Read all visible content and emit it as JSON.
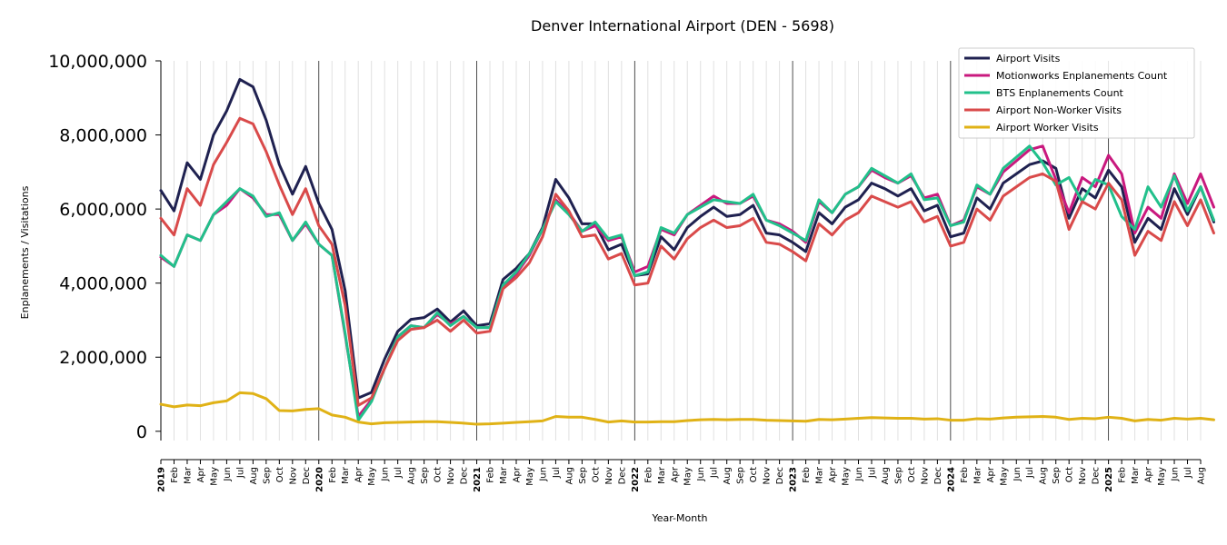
{
  "chart_data": {
    "type": "line",
    "title": "Denver International Airport (DEN - 5698)",
    "xlabel": "Year-Month",
    "ylabel": "Enplanements / Visitations",
    "ylim": [
      -250000,
      10000000
    ],
    "yticks": [
      0,
      2000000,
      4000000,
      6000000,
      8000000,
      10000000
    ],
    "ytick_labels": [
      "0",
      "2,000,000",
      "4,000,000",
      "6,000,000",
      "8,000,000",
      "10,000,000"
    ],
    "legend_position": "top-right",
    "grid": "vertical monthly lines, year boundary lines",
    "x_labels": [
      "2019",
      "Feb",
      "Mar",
      "Apr",
      "May",
      "Jun",
      "Jul",
      "Aug",
      "Sep",
      "Oct",
      "Nov",
      "Dec",
      "2020",
      "Feb",
      "Mar",
      "Apr",
      "May",
      "Jun",
      "Jul",
      "Aug",
      "Sep",
      "Oct",
      "Nov",
      "Dec",
      "2021",
      "Feb",
      "Mar",
      "Apr",
      "May",
      "Jun",
      "Jul",
      "Aug",
      "Sep",
      "Oct",
      "Nov",
      "Dec",
      "2022",
      "Feb",
      "Mar",
      "Apr",
      "May",
      "Jun",
      "Jul",
      "Aug",
      "Sep",
      "Oct",
      "Nov",
      "Dec",
      "2023",
      "Feb",
      "Mar",
      "Apr",
      "May",
      "Jun",
      "Jul",
      "Aug",
      "Sep",
      "Oct",
      "Nov",
      "Dec",
      "2024",
      "Feb",
      "Mar",
      "Apr",
      "May",
      "Jun",
      "Jul",
      "Aug",
      "Sep",
      "Oct",
      "Nov",
      "Dec",
      "2025",
      "Feb",
      "Mar",
      "Apr",
      "May",
      "Jun",
      "Jul",
      "Aug"
    ],
    "series": [
      {
        "name": "Airport Visits",
        "color": "#1f2150",
        "values": [
          6500000,
          5950000,
          7250000,
          6800000,
          8000000,
          8650000,
          9500000,
          9300000,
          8400000,
          7200000,
          6400000,
          7150000,
          6150000,
          5450000,
          3800000,
          900000,
          1050000,
          1950000,
          2700000,
          3020000,
          3070000,
          3300000,
          2950000,
          3250000,
          2850000,
          2900000,
          4100000,
          4400000,
          4800000,
          5500000,
          6800000,
          6300000,
          5600000,
          5600000,
          4900000,
          5050000,
          4200000,
          4250000,
          5250000,
          4900000,
          5500000,
          5800000,
          6050000,
          5800000,
          5850000,
          6100000,
          5350000,
          5300000,
          5100000,
          4850000,
          5900000,
          5600000,
          6050000,
          6250000,
          6700000,
          6550000,
          6350000,
          6550000,
          5950000,
          6100000,
          5250000,
          5350000,
          6300000,
          6000000,
          6700000,
          6950000,
          7200000,
          7300000,
          7100000,
          5750000,
          6550000,
          6300000,
          7050000,
          6600000,
          5100000,
          5750000,
          5450000,
          6550000,
          5850000,
          6600000,
          5650000
        ]
      },
      {
        "name": "Motionworks Enplanements Count",
        "color": "#c9197e",
        "values": [
          4700000,
          4450000,
          5300000,
          5150000,
          5850000,
          6100000,
          6550000,
          6300000,
          5850000,
          5850000,
          5150000,
          5600000,
          5050000,
          4750000,
          2600000,
          400000,
          850000,
          1700000,
          2550000,
          2850000,
          2800000,
          3150000,
          2900000,
          3100000,
          2800000,
          2800000,
          3900000,
          4250000,
          4750000,
          5450000,
          6250000,
          5900000,
          5400000,
          5550000,
          5150000,
          5250000,
          4300000,
          4450000,
          5450000,
          5300000,
          5850000,
          6100000,
          6350000,
          6150000,
          6150000,
          6350000,
          5700000,
          5600000,
          5400000,
          5100000,
          6200000,
          5900000,
          6400000,
          6600000,
          7050000,
          6850000,
          6700000,
          6900000,
          6300000,
          6400000,
          5550000,
          5700000,
          6600000,
          6400000,
          7000000,
          7300000,
          7600000,
          7700000,
          6800000,
          5900000,
          6850000,
          6600000,
          7450000,
          6950000,
          5350000,
          6050000,
          5750000,
          6950000,
          6150000,
          6950000,
          6050000
        ]
      },
      {
        "name": "BTS Enplanements Count",
        "color": "#22c08b",
        "values": [
          4750000,
          4450000,
          5300000,
          5150000,
          5850000,
          6200000,
          6550000,
          6350000,
          5800000,
          5900000,
          5150000,
          5650000,
          5050000,
          4750000,
          2650000,
          300000,
          800000,
          1700000,
          2550000,
          2850000,
          2800000,
          3200000,
          2850000,
          3100000,
          2800000,
          2800000,
          3950000,
          4300000,
          4800000,
          5450000,
          6200000,
          5850000,
          5400000,
          5650000,
          5200000,
          5300000,
          4200000,
          4300000,
          5500000,
          5350000,
          5850000,
          6050000,
          6250000,
          6200000,
          6150000,
          6400000,
          5700000,
          5550000,
          5350000,
          5150000,
          6250000,
          5900000,
          6400000,
          6600000,
          7100000,
          6900000,
          6700000,
          6950000,
          6250000,
          6300000,
          5550000,
          5650000,
          6650000,
          6400000,
          7100000,
          7400000,
          7700000,
          7250000,
          6650000,
          6850000,
          6200000,
          6800000,
          6650000,
          5800000,
          5450000,
          6600000,
          6050000,
          6900000,
          5950000,
          6600000,
          5700000
        ]
      },
      {
        "name": "Airport Non-Worker Visits",
        "color": "#d94a4a",
        "values": [
          5750000,
          5300000,
          6550000,
          6100000,
          7200000,
          7800000,
          8450000,
          8300000,
          7550000,
          6650000,
          5850000,
          6550000,
          5550000,
          5050000,
          3400000,
          700000,
          900000,
          1700000,
          2450000,
          2750000,
          2800000,
          3000000,
          2700000,
          3000000,
          2650000,
          2700000,
          3850000,
          4150000,
          4550000,
          5250000,
          6400000,
          5950000,
          5250000,
          5300000,
          4650000,
          4800000,
          3950000,
          4000000,
          5000000,
          4650000,
          5200000,
          5500000,
          5700000,
          5500000,
          5550000,
          5750000,
          5100000,
          5050000,
          4850000,
          4600000,
          5600000,
          5300000,
          5700000,
          5900000,
          6350000,
          6200000,
          6050000,
          6200000,
          5650000,
          5800000,
          5000000,
          5100000,
          6000000,
          5700000,
          6350000,
          6600000,
          6850000,
          6950000,
          6750000,
          5450000,
          6200000,
          6000000,
          6700000,
          6250000,
          4750000,
          5400000,
          5150000,
          6200000,
          5550000,
          6250000,
          5350000
        ]
      },
      {
        "name": "Airport Worker Visits",
        "color": "#e0b216",
        "values": [
          730000,
          660000,
          710000,
          690000,
          770000,
          820000,
          1040000,
          1020000,
          880000,
          560000,
          550000,
          590000,
          610000,
          440000,
          380000,
          250000,
          200000,
          230000,
          240000,
          250000,
          260000,
          260000,
          240000,
          220000,
          190000,
          200000,
          220000,
          240000,
          260000,
          280000,
          400000,
          380000,
          380000,
          320000,
          250000,
          280000,
          250000,
          250000,
          260000,
          260000,
          290000,
          310000,
          320000,
          310000,
          320000,
          320000,
          300000,
          290000,
          280000,
          270000,
          320000,
          310000,
          330000,
          350000,
          370000,
          360000,
          350000,
          350000,
          330000,
          340000,
          300000,
          300000,
          340000,
          330000,
          360000,
          380000,
          390000,
          400000,
          380000,
          320000,
          350000,
          340000,
          380000,
          350000,
          280000,
          320000,
          300000,
          350000,
          330000,
          350000,
          310000
        ]
      }
    ]
  }
}
